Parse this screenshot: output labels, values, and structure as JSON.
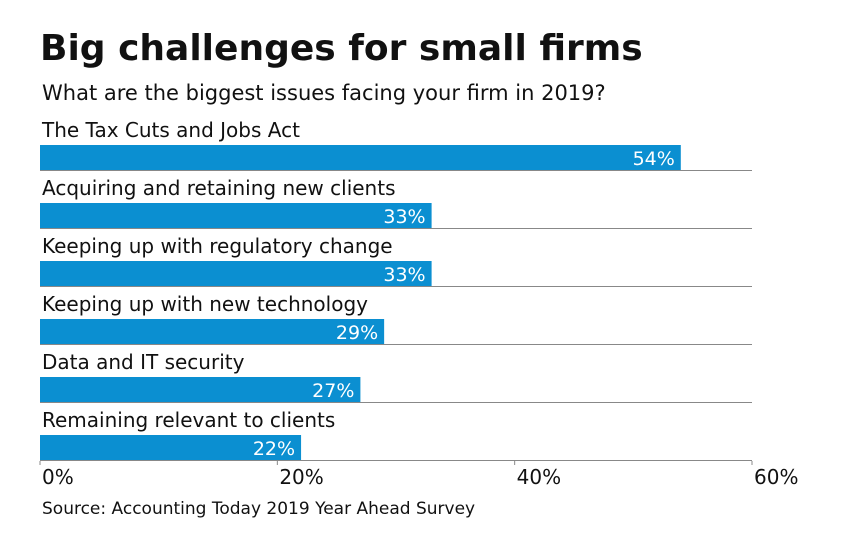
{
  "chart_data": {
    "type": "hbar",
    "title": "Big challenges for small firms",
    "subtitle": "What are the biggest issues facing your firm in 2019?",
    "categories": [
      "The Tax Cuts and Jobs Act",
      "Acquiring and retaining new clients",
      "Keeping up with regulatory change",
      "Keeping up with new technology",
      "Data and IT security",
      "Remaining relevant to clients"
    ],
    "values": [
      54,
      33,
      33,
      29,
      27,
      22
    ],
    "value_labels": [
      "54%",
      "33%",
      "33%",
      "29%",
      "27%",
      "22%"
    ],
    "color": "#0b8fd1",
    "xlim": [
      0,
      60
    ],
    "xticks": [
      {
        "value": 0,
        "label": "0%"
      },
      {
        "value": 20,
        "label": "20%"
      },
      {
        "value": 40,
        "label": "40%"
      },
      {
        "value": 60,
        "label": "60%"
      }
    ],
    "source": "Source: Accounting Today 2019 Year Ahead Survey"
  }
}
